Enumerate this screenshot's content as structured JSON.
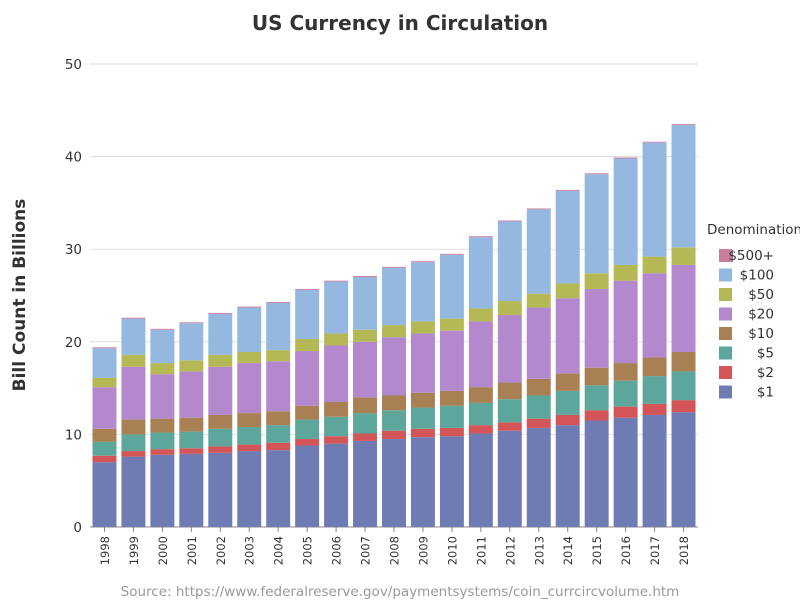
{
  "chart_data": {
    "type": "bar",
    "stacked": true,
    "title": "US Currency in Circulation",
    "xlabel": "",
    "ylabel": "Bill Count in Billions",
    "ylim": [
      0,
      50
    ],
    "yticks": [
      0,
      10,
      20,
      30,
      40,
      50
    ],
    "grid": true,
    "legend": {
      "title": "Denomination",
      "placement": "right"
    },
    "source": "Source: https://www.federalreserve.gov/paymentsystems/coin_currcircvolume.htm",
    "categories": [
      "1998",
      "1999",
      "2000",
      "2001",
      "2002",
      "2003",
      "2004",
      "2005",
      "2006",
      "2007",
      "2008",
      "2009",
      "2010",
      "2011",
      "2012",
      "2013",
      "2014",
      "2015",
      "2016",
      "2017",
      "2018"
    ],
    "series": [
      {
        "name": "$1",
        "color": "#6f7cb4",
        "values": [
          7.0,
          7.6,
          7.8,
          7.9,
          8.0,
          8.2,
          8.3,
          8.8,
          9.0,
          9.3,
          9.5,
          9.7,
          9.8,
          10.1,
          10.4,
          10.7,
          11.0,
          11.5,
          11.8,
          12.1,
          12.4
        ]
      },
      {
        "name": "$2",
        "color": "#d45557",
        "values": [
          0.7,
          0.6,
          0.6,
          0.6,
          0.7,
          0.7,
          0.8,
          0.7,
          0.8,
          0.8,
          0.9,
          0.9,
          0.9,
          0.9,
          0.9,
          1.0,
          1.1,
          1.1,
          1.2,
          1.2,
          1.3
        ]
      },
      {
        "name": "$5",
        "color": "#5da69b",
        "values": [
          1.5,
          1.8,
          1.8,
          1.8,
          1.9,
          1.9,
          1.9,
          2.1,
          2.1,
          2.2,
          2.2,
          2.3,
          2.4,
          2.4,
          2.5,
          2.5,
          2.6,
          2.7,
          2.8,
          3.0,
          3.1
        ]
      },
      {
        "name": "$10",
        "color": "#a88053",
        "values": [
          1.4,
          1.6,
          1.5,
          1.5,
          1.5,
          1.5,
          1.5,
          1.5,
          1.6,
          1.7,
          1.6,
          1.6,
          1.6,
          1.7,
          1.8,
          1.8,
          1.9,
          1.9,
          1.9,
          2.0,
          2.1
        ]
      },
      {
        "name": "$20",
        "color": "#b388cc",
        "values": [
          4.5,
          5.7,
          4.8,
          5.0,
          5.2,
          5.4,
          5.4,
          5.9,
          6.1,
          6.0,
          6.3,
          6.4,
          6.5,
          7.1,
          7.3,
          7.7,
          8.1,
          8.5,
          8.9,
          9.1,
          9.4
        ]
      },
      {
        "name": "$50",
        "color": "#b5b955",
        "values": [
          1.0,
          1.3,
          1.2,
          1.2,
          1.3,
          1.2,
          1.2,
          1.3,
          1.3,
          1.3,
          1.3,
          1.3,
          1.3,
          1.4,
          1.5,
          1.5,
          1.6,
          1.7,
          1.7,
          1.8,
          1.9
        ]
      },
      {
        "name": "$100",
        "color": "#94b8df",
        "values": [
          3.2,
          3.9,
          3.6,
          4.0,
          4.4,
          4.8,
          5.1,
          5.3,
          5.6,
          5.7,
          6.2,
          6.4,
          6.9,
          7.7,
          8.6,
          9.1,
          10.0,
          10.7,
          11.5,
          12.3,
          13.2
        ]
      },
      {
        "name": "$500+",
        "color": "#c97d9e",
        "values": [
          0.1,
          0.1,
          0.1,
          0.1,
          0.1,
          0.1,
          0.1,
          0.1,
          0.1,
          0.1,
          0.1,
          0.1,
          0.1,
          0.1,
          0.1,
          0.1,
          0.1,
          0.1,
          0.1,
          0.1,
          0.1
        ]
      }
    ]
  }
}
